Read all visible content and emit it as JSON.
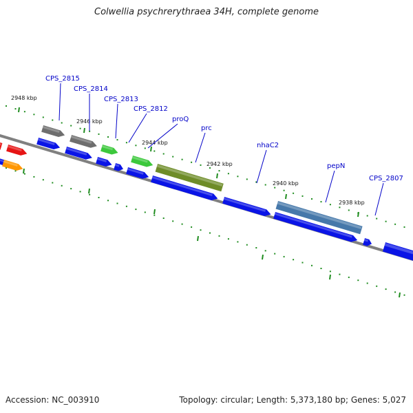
{
  "header": {
    "title": "Colwellia psychrerythraea 34H, complete genome"
  },
  "footer": {
    "accession": "Accession: NC_003910",
    "summary": "Topology: circular; Length: 5,373,180 bp; Genes: 5,027"
  },
  "kbp_labels": [
    "2948 kbp",
    "2946 kbp",
    "2944 kbp",
    "2942 kbp",
    "2940 kbp",
    "2938 kbp"
  ],
  "gene_labels": [
    "CPS_2815",
    "CPS_2814",
    "CPS_2813",
    "CPS_2812",
    "proQ",
    "prc",
    "nhaC2",
    "pepN",
    "CPS_2807"
  ],
  "colors": {
    "backbone": "#808080",
    "cds_blue": "#0a14e6",
    "gene_gray": "#6e6e6e",
    "gene_green": "#3cc83c",
    "gene_olive": "#6e8c28",
    "gene_steel": "#4678aa",
    "gene_red": "#e61414",
    "gene_orange": "#ff9600",
    "tick_green": "#1e8c1e",
    "label_blue": "#0000c8"
  }
}
